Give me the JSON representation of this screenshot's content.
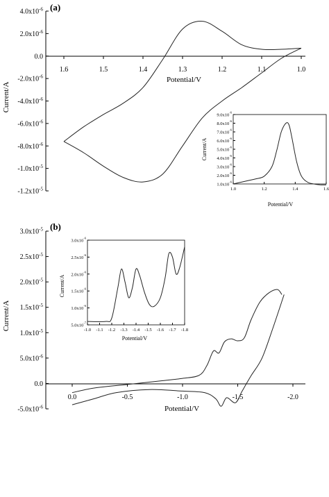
{
  "chart_data": [
    {
      "panel": "(a)",
      "type": "line",
      "xlabel": "Potential/V",
      "ylabel": "Current/A",
      "x_reversed": true,
      "xlim": [
        1.6,
        1.0
      ],
      "ylim": [
        -1.2e-05,
        4e-06
      ],
      "xticks": [
        "1.6",
        "1.5",
        "1.4",
        "1.3",
        "1.2",
        "1.1",
        "1.0"
      ],
      "yticks": [
        "4.0x10-6",
        "2.0x10-6",
        "0.0",
        "-2.0x10-6",
        "-4.0x10-6",
        "-6.0x10-6",
        "-8.0x10-6",
        "-1.0x10-5",
        "-1.2x10-5"
      ],
      "series": [
        {
          "x": [
            1.0,
            1.05,
            1.1,
            1.15,
            1.2,
            1.25,
            1.3,
            1.35,
            1.4,
            1.45,
            1.5,
            1.55,
            1.6
          ],
          "y": [
            7e-07,
            6e-07,
            6e-07,
            1e-06,
            2.2e-06,
            3.1e-06,
            2.4e-06,
            -3e-07,
            -2.8e-06,
            -4.2e-06,
            -5.2e-06,
            -6.3e-06,
            -7.6e-06
          ]
        },
        {
          "x": [
            1.6,
            1.55,
            1.5,
            1.45,
            1.4,
            1.35,
            1.3,
            1.25,
            1.2,
            1.15,
            1.1,
            1.05,
            1.0
          ],
          "y": [
            -7.6e-06,
            -8.6e-06,
            -9.8e-06,
            -1.08e-05,
            -1.12e-05,
            -1.05e-05,
            -8e-06,
            -5.5e-06,
            -4e-06,
            -2.8e-06,
            -1.5e-06,
            -2e-07,
            7e-07
          ]
        }
      ],
      "inset": {
        "xlabel": "Potential/V",
        "ylabel": "Current/A",
        "xlim": [
          1.0,
          1.6
        ],
        "ylim": [
          1e-06,
          9e-06
        ],
        "xticks": [
          "1.0",
          "1.2",
          "1.4",
          "1.6"
        ],
        "yticks": [
          "9.0x10-6",
          "8.0x10-6",
          "7.0x10-6",
          "6.0x10-6",
          "5.0x10-6",
          "4.0x10-6",
          "3.0x10-6",
          "2.0x10-6",
          "1.0x10-6"
        ],
        "x": [
          1.0,
          1.05,
          1.1,
          1.15,
          1.2,
          1.25,
          1.28,
          1.31,
          1.34,
          1.36,
          1.38,
          1.41,
          1.44,
          1.48,
          1.52,
          1.56,
          1.6
        ],
        "y": [
          1e-06,
          1.2e-06,
          1.4e-06,
          1.6e-06,
          1.9e-06,
          3e-06,
          4.8e-06,
          7e-06,
          8e-06,
          7.8e-06,
          6.2e-06,
          3.5e-06,
          1.9e-06,
          1.2e-06,
          1e-06,
          9e-07,
          9e-07
        ]
      }
    },
    {
      "panel": "(b)",
      "type": "line",
      "xlabel": "Potential/V",
      "ylabel": "Current/A",
      "x_reversed": true,
      "xlim": [
        0.0,
        -2.0
      ],
      "ylim": [
        -5e-06,
        3e-05
      ],
      "xticks": [
        "0.0",
        "-0.5",
        "-1.0",
        "-1.5",
        "-2.0"
      ],
      "yticks": [
        "3.0x10-5",
        "2.5x10-5",
        "2.0x10-5",
        "1.5x10-5",
        "1.0x10-5",
        "5.0x10-6",
        "0.0",
        "-5.0x10-6"
      ],
      "series": [
        {
          "x": [
            0.0,
            -0.2,
            -0.5,
            -0.8,
            -1.0,
            -1.15,
            -1.22,
            -1.28,
            -1.33,
            -1.38,
            -1.44,
            -1.5,
            -1.56,
            -1.62,
            -1.7,
            -1.78,
            -1.86,
            -1.9
          ],
          "y": [
            -1.8e-06,
            -9e-07,
            -2e-07,
            5e-07,
            1e-06,
            1.6e-06,
            3.5e-06,
            6.4e-06,
            6e-06,
            8.2e-06,
            8.8e-06,
            8.4e-06,
            9e-06,
            1.25e-05,
            1.6e-05,
            1.78e-05,
            1.85e-05,
            1.75e-05
          ]
        },
        {
          "x": [
            -1.92,
            -1.82,
            -1.72,
            -1.62,
            -1.54,
            -1.48,
            -1.4,
            -1.35,
            -1.3,
            -1.2,
            -1.0,
            -0.7,
            -0.4,
            -0.2,
            0.0
          ],
          "y": [
            1.75e-05,
            1.1e-05,
            5e-06,
            1.5e-06,
            -1.5e-06,
            -3.8e-06,
            -2.8e-06,
            -4.5e-06,
            -3e-06,
            -1.8e-06,
            -1.5e-06,
            -1.2e-06,
            -1.8e-06,
            -3e-06,
            -4.2e-06
          ]
        }
      ],
      "inset": {
        "xlabel": "Potential/V",
        "ylabel": "Current/A",
        "xlim": [
          -1.0,
          -1.8
        ],
        "ylim": [
          5e-07,
          3e-06
        ],
        "xticks": [
          "-1.0",
          "-1.1",
          "-1.2",
          "-1.3",
          "-1.4",
          "-1.5",
          "-1.6",
          "-1.7",
          "-1.8"
        ],
        "yticks": [
          "3.0x10-6",
          "2.5x10-6",
          "2.0x10-6",
          "1.5x10-6",
          "1.0x10-6",
          "5.0x10-7"
        ],
        "x": [
          -1.0,
          -1.15,
          -1.2,
          -1.25,
          -1.28,
          -1.31,
          -1.34,
          -1.37,
          -1.4,
          -1.43,
          -1.47,
          -1.51,
          -1.55,
          -1.6,
          -1.64,
          -1.67,
          -1.7,
          -1.73,
          -1.76,
          -1.8
        ],
        "y": [
          6e-07,
          6e-07,
          7e-07,
          1.6e-06,
          2.15e-06,
          1.75e-06,
          1.3e-06,
          1.6e-06,
          2.15e-06,
          1.95e-06,
          1.45e-06,
          1.1e-06,
          1.05e-06,
          1.3e-06,
          1.9e-06,
          2.6e-06,
          2.5e-06,
          2e-06,
          2.2e-06,
          2.8e-06
        ]
      }
    }
  ]
}
